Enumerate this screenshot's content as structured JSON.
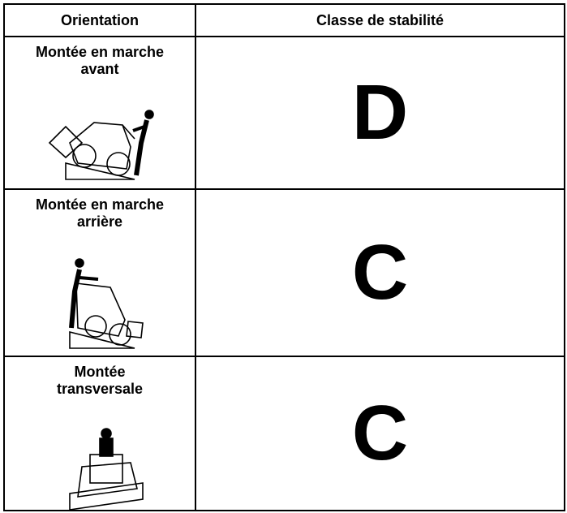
{
  "table": {
    "header": [
      "Orientation",
      "Classe de stabilité"
    ],
    "rows": [
      {
        "orientation": [
          "Montée en marche",
          "avant"
        ],
        "class": "D"
      },
      {
        "orientation": [
          "Montée en marche",
          "arrière"
        ],
        "class": "C"
      },
      {
        "orientation": [
          "Montée",
          "transversale"
        ],
        "class": "C"
      }
    ]
  }
}
